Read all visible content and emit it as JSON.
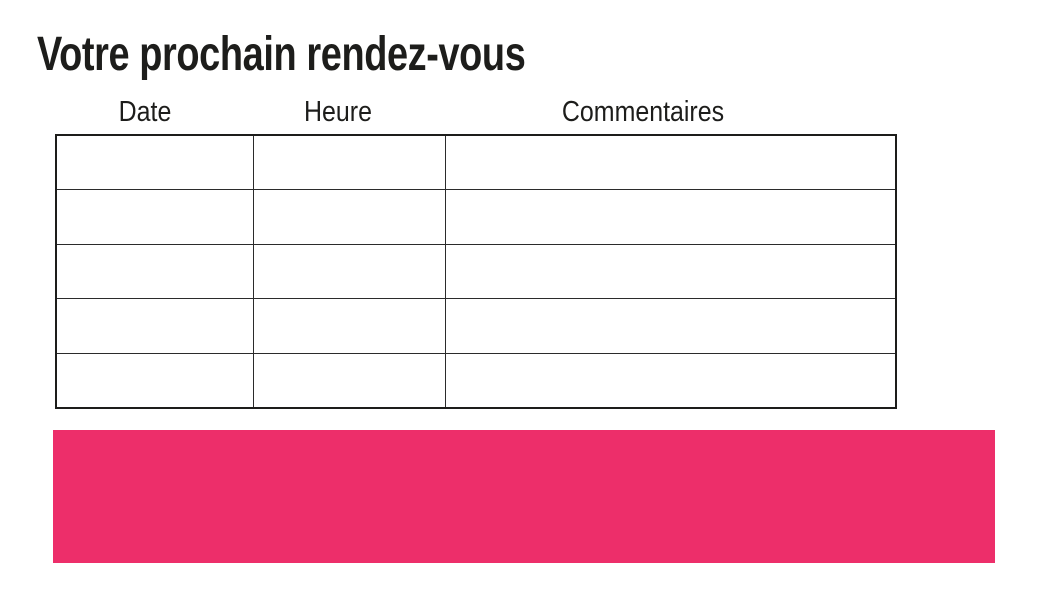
{
  "page": {
    "title": "Votre prochain rendez-vous"
  },
  "table": {
    "headers": [
      {
        "label": "Date"
      },
      {
        "label": "Heure"
      },
      {
        "label": "Commentaires"
      }
    ],
    "rows": [
      [
        "",
        "",
        ""
      ],
      [
        "",
        "",
        ""
      ],
      [
        "",
        "",
        ""
      ],
      [
        "",
        "",
        ""
      ],
      [
        "",
        "",
        ""
      ]
    ]
  },
  "colors": {
    "banner_pink": "#ED2E6A",
    "table_border": "#2b2b2b",
    "text_black": "#1d1d1b"
  }
}
